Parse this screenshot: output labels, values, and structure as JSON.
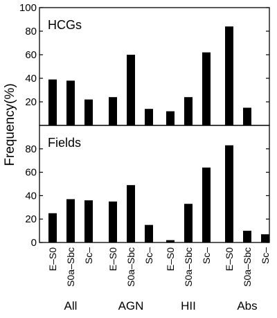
{
  "chart_data": {
    "type": "bar",
    "ylabel": "Frequency(%)",
    "groups": [
      "All",
      "AGN",
      "HII",
      "Abs"
    ],
    "categories": [
      "E–S0",
      "S0a–Sbc",
      "Sc–"
    ],
    "panels": [
      {
        "title": "HCGs",
        "ylim": [
          0,
          100
        ],
        "yticks": [
          20,
          40,
          60,
          80,
          100
        ],
        "values": [
          [
            39,
            38,
            22
          ],
          [
            24,
            60,
            14
          ],
          [
            12,
            24,
            62
          ],
          [
            84,
            15,
            0
          ]
        ]
      },
      {
        "title": "Fields",
        "ylim": [
          0,
          100
        ],
        "yticks": [
          0,
          20,
          40,
          60,
          80
        ],
        "values": [
          [
            25,
            37,
            36
          ],
          [
            35,
            49,
            15
          ],
          [
            2,
            33,
            64
          ],
          [
            83,
            10,
            7
          ]
        ]
      }
    ]
  }
}
